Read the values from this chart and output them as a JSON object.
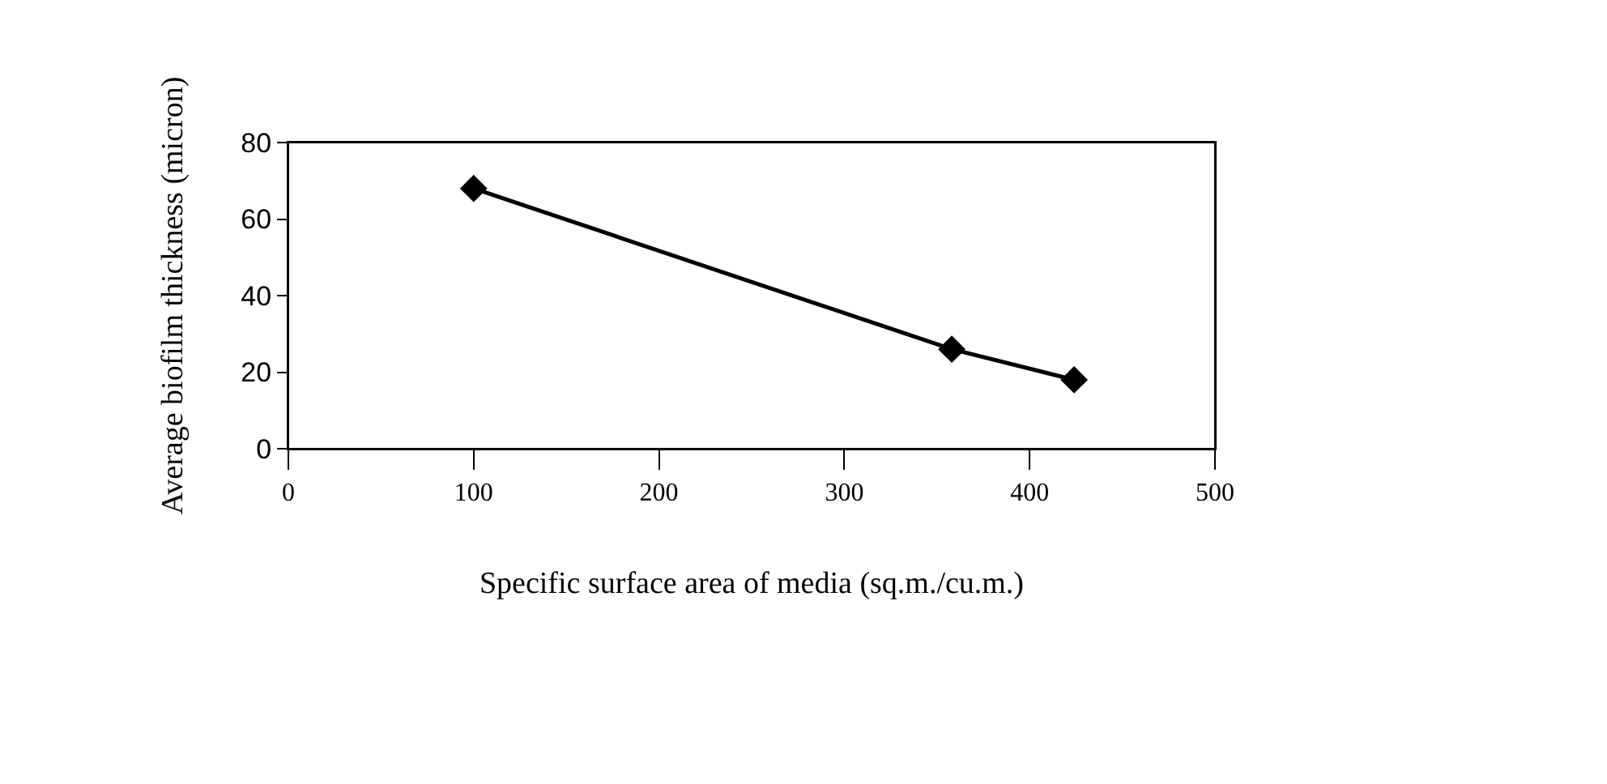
{
  "chart_data": {
    "type": "line",
    "xlabel": "Specific surface area of media (sq.m./cu.m.)",
    "ylabel": "Average biofilm thickness (micron)",
    "x": [
      100,
      358,
      424
    ],
    "series": [
      {
        "color": "#000000",
        "values": [
          68,
          26,
          18
        ]
      }
    ],
    "xlim": [
      0,
      500
    ],
    "xticks": [
      0,
      100,
      200,
      300,
      400,
      500
    ],
    "ylim": [
      0,
      80
    ],
    "yticks": [
      0,
      20,
      40,
      60,
      80
    ],
    "marker": "diamond",
    "line_style": "solid",
    "grid": false,
    "legend": false
  }
}
